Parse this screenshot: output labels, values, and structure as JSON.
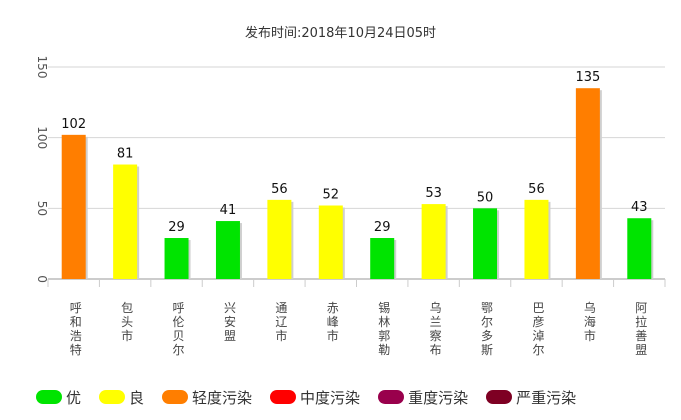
{
  "subtitle": "发布时间:2018年10月24日05时",
  "chart_data": {
    "type": "bar",
    "title": "",
    "subtitle": "发布时间:2018年10月24日05时",
    "xlabel": "",
    "ylabel": "",
    "ylim": [
      0,
      150
    ],
    "yticks": [
      "0",
      "50",
      "100",
      "150"
    ],
    "grid": true,
    "categories": [
      "呼和浩特市",
      "包头市",
      "呼伦贝尔市",
      "兴安盟",
      "通辽市",
      "赤峰市",
      "锡林郭勒盟",
      "乌兰察布市",
      "鄂尔多斯市",
      "巴彦淖尔市",
      "乌海市",
      "阿拉善盟"
    ],
    "values": [
      102,
      81,
      29,
      41,
      56,
      52,
      29,
      53,
      50,
      56,
      135,
      43
    ],
    "levels": [
      "轻度污染",
      "良",
      "优",
      "优",
      "良",
      "良",
      "优",
      "良",
      "优",
      "良",
      "轻度污染",
      "优"
    ],
    "legend_position": "bottom",
    "legend": [
      {
        "label": "优",
        "color": "#00e400"
      },
      {
        "label": "良",
        "color": "#ffff00"
      },
      {
        "label": "轻度污染",
        "color": "#ff7e00"
      },
      {
        "label": "中度污染",
        "color": "#ff0000"
      },
      {
        "label": "重度污染",
        "color": "#99004c"
      },
      {
        "label": "严重污染",
        "color": "#7e0023"
      }
    ]
  }
}
